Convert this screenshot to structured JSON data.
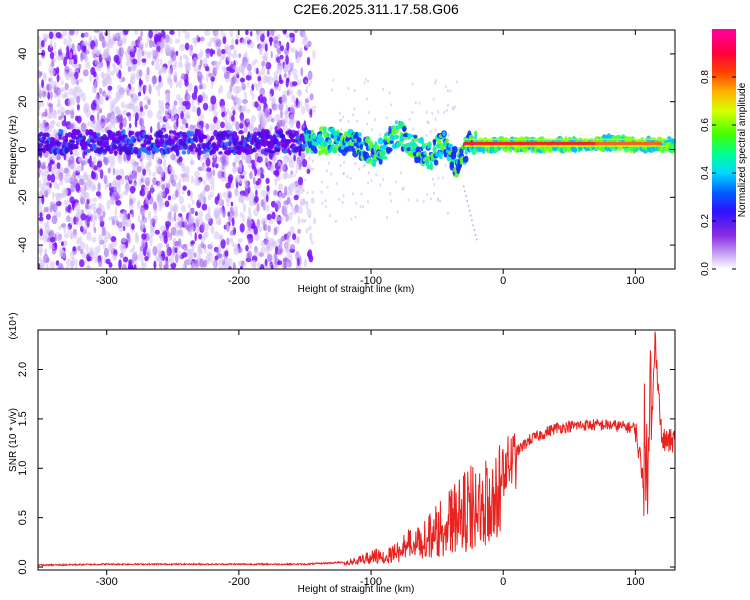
{
  "figure": {
    "title": "C2E6.2025.311.17.58.G06"
  },
  "chart_data": [
    {
      "type": "heatmap",
      "title": "C2E6.2025.311.17.58.G06",
      "xlabel": "Height of straight line (km)",
      "ylabel": "Frequency (Hz)",
      "xlim": [
        -352,
        130
      ],
      "ylim": [
        -50,
        50
      ],
      "x_ticks": [
        -300,
        -200,
        -100,
        0,
        100
      ],
      "y_ticks": [
        -40,
        -20,
        0,
        20,
        40
      ],
      "grid": false,
      "colorbar": {
        "label": "Normalized spectral amplitude",
        "range": [
          0,
          1
        ],
        "ticks": [
          0.0,
          0.2,
          0.4,
          0.6,
          0.8
        ],
        "colors": [
          "#ffffff",
          "#8a2be2",
          "#0000ff",
          "#00ffff",
          "#00ff00",
          "#ffff00",
          "#ff7f00",
          "#ff0000",
          "#ff00ff"
        ]
      },
      "signal_ridge": [
        {
          "x": -340,
          "y": 3
        },
        {
          "x": -300,
          "y": 3
        },
        {
          "x": -250,
          "y": 3
        },
        {
          "x": -200,
          "y": 3
        },
        {
          "x": -150,
          "y": 3
        },
        {
          "x": -130,
          "y": 4
        },
        {
          "x": -110,
          "y": 2
        },
        {
          "x": -95,
          "y": -2
        },
        {
          "x": -80,
          "y": 7
        },
        {
          "x": -65,
          "y": 0
        },
        {
          "x": -55,
          "y": -3
        },
        {
          "x": -45,
          "y": 3
        },
        {
          "x": -35,
          "y": -6
        },
        {
          "x": -25,
          "y": 2
        },
        {
          "x": 0,
          "y": 2
        },
        {
          "x": 50,
          "y": 2
        },
        {
          "x": 80,
          "y": 3
        },
        {
          "x": 100,
          "y": 2
        },
        {
          "x": 130,
          "y": 2
        }
      ]
    },
    {
      "type": "line",
      "xlabel": "Height of straight line (km)",
      "ylabel": "SNR (10 * v/v)",
      "y_multiplier": "(x10⁴)",
      "xlim": [
        -352,
        130
      ],
      "ylim": [
        -0.03,
        2.4
      ],
      "x_ticks": [
        -300,
        -200,
        -100,
        0,
        100
      ],
      "y_ticks": [
        0.0,
        0.5,
        1.0,
        1.5,
        2.0
      ],
      "grid": false,
      "color": "#e8221f",
      "series": [
        {
          "x": [
            -352,
            -300,
            -250,
            -200,
            -150,
            -120,
            -100,
            -80,
            -60,
            -40,
            -20,
            0,
            20,
            40,
            60,
            80,
            100,
            110,
            115,
            120,
            130
          ],
          "values": [
            0.02,
            0.03,
            0.03,
            0.03,
            0.03,
            0.05,
            0.12,
            0.22,
            0.38,
            0.6,
            0.8,
            1.05,
            1.3,
            1.42,
            1.45,
            1.45,
            1.42,
            0.6,
            2.35,
            1.3,
            1.3
          ]
        }
      ]
    }
  ]
}
